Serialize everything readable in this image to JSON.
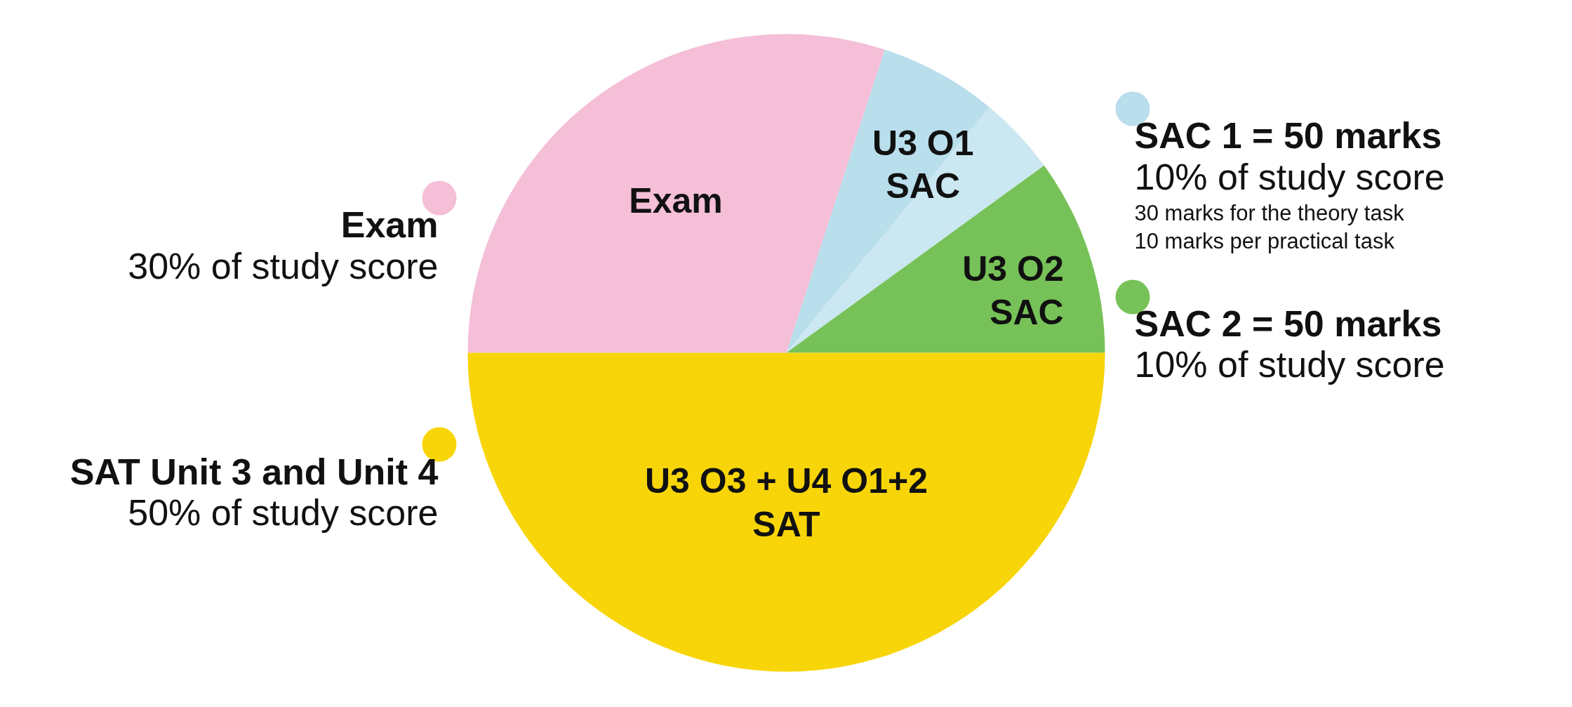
{
  "chart_data": {
    "type": "pie",
    "categories": [
      "Exam",
      "U3 O1\nSAC",
      null,
      "U3 O2\nSAC",
      "U3 O3 + U4 O1+2\nSAT"
    ],
    "values": [
      30,
      6,
      4,
      10,
      50
    ],
    "colors": [
      "#f4bfd7",
      "#b9deec",
      "#cbe7f1",
      "#77c258",
      "#f8d508"
    ],
    "annotations": [
      "Exam",
      "30% of study score",
      "SAT Unit 3 and Unit 4",
      "50% of study score",
      "SAC 1 = 50 marks",
      "10% of study score",
      "30 marks for the theory task",
      "10 marks per practical task",
      "SAC 2 = 50 marks",
      "10% of study score"
    ]
  }
}
